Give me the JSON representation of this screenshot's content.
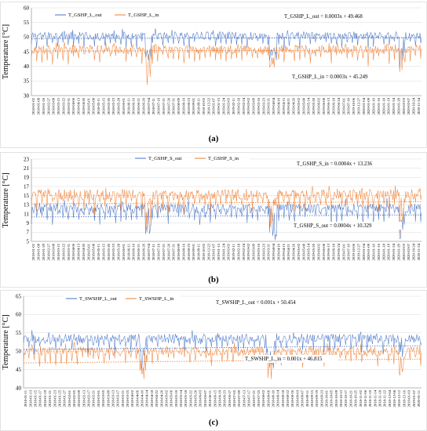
{
  "panels": [
    {
      "panel_label": "(a)",
      "colors": {
        "out": "#4472c4",
        "in": "#ed7d31"
      },
      "chart_data": {
        "type": "line",
        "title": "",
        "xlabel": "",
        "ylabel": "Temperature [°C]",
        "ylim": [
          30,
          60
        ],
        "yticks": [
          30,
          35,
          40,
          45,
          50,
          55,
          60
        ],
        "legend_position": "top-left",
        "series": [
          {
            "name": "T_GSHP_L_out",
            "baseline": 50.5,
            "noise": 2.2,
            "trend": {
              "slope": 0.0003,
              "intercept": 49.468
            }
          },
          {
            "name": "T_GSHP_L_in",
            "baseline": 45.8,
            "noise": 2.5,
            "trend": {
              "slope": 0.0003,
              "intercept": 45.249
            }
          }
        ],
        "annotations": [
          "T_GSHP_L_out = 0.0003x + 49.468",
          "T_GSHP_L_in = 0.0003x + 45.249"
        ],
        "x_labels": [
          "2018-01-02",
          "2018-01-08",
          "2018-01-26",
          "2018-02-27",
          "2018-03-08",
          "2018-03-15",
          "2018-03-22",
          "2018-03-31",
          "2018-04-06",
          "2018-04-13",
          "2018-04-20",
          "2018-05-01",
          "2018-05-08",
          "2018-05-11",
          "2018-05-15",
          "2018-05-20",
          "2018-05-23",
          "2018-05-28",
          "2018-06-01",
          "2018-06-11",
          "2018-06-16",
          "2018-06-21",
          "2018-06-26",
          "2018-07-04",
          "2018-07-11",
          "2018-07-16",
          "2018-07-21",
          "2018-07-26",
          "2018-07-31",
          "2018-08-09",
          "2018-08-16",
          "2018-08-23",
          "2018-09-01",
          "2018-09-11",
          "2018-10-03",
          "2018-12-22",
          "2019-01-07",
          "2019-01-15",
          "2019-01-24",
          "2019-02-03",
          "2019-02-11",
          "2019-02-18",
          "2019-02-24",
          "2019-03-02",
          "2019-03-09",
          "2019-03-16",
          "2019-03-23",
          "2019-03-31",
          "2019-04-04",
          "2019-04-10",
          "2019-04-15",
          "2019-04-21",
          "2019-04-26",
          "2019-05-02",
          "2019-05-08",
          "2019-05-14",
          "2019-05-20",
          "2019-06-02",
          "2019-06-08",
          "2019-06-13",
          "2019-06-18",
          "2019-06-24",
          "2019-07-01",
          "2019-07-10",
          "2019-10-06",
          "2019-12-27",
          "2020-01-04",
          "2020-01-09",
          "2020-01-10",
          "2020-01-16",
          "2020-01-18",
          "2020-01-19",
          "2020-01-24",
          "2020-01-29",
          "2020-02-03",
          "2020-02-07",
          "2020-10-24",
          "2020-11-24"
        ]
      }
    },
    {
      "panel_label": "(b)",
      "colors": {
        "out": "#4472c4",
        "in": "#ed7d31"
      },
      "chart_data": {
        "type": "line",
        "title": "",
        "xlabel": "",
        "ylabel": "Temperature [°C]",
        "ylim": [
          5,
          23
        ],
        "yticks": [
          5,
          7,
          9,
          11,
          13,
          15,
          17,
          19,
          21,
          23
        ],
        "legend_position": "top-center",
        "series": [
          {
            "name": "T_GSHP_S_out",
            "baseline": 12.2,
            "noise": 1.8,
            "trend": {
              "slope": 0.0004,
              "intercept": 10.329
            }
          },
          {
            "name": "T_GSHP_S_in",
            "baseline": 15.2,
            "noise": 2.0,
            "trend": {
              "slope": 0.0004,
              "intercept": 13.236
            }
          }
        ],
        "annotations": [
          "T_GSHP_S_in = 0.0004x + 13.236",
          "T_GSHP_S_out = 0.0004x + 10.329"
        ],
        "x_labels": [
          "2018-01-02",
          "2018-01-08",
          "2018-01-29",
          "2018-02-27",
          "2018-03-08",
          "2018-03-15",
          "2018-03-22",
          "2018-03-31",
          "2018-04-06",
          "2018-04-13",
          "2018-04-20",
          "2018-05-01",
          "2018-05-08",
          "2018-05-11",
          "2018-05-15",
          "2018-05-20",
          "2018-05-23",
          "2018-05-28",
          "2018-06-01",
          "2018-06-11",
          "2018-06-16",
          "2018-06-21",
          "2018-06-26",
          "2018-07-04",
          "2018-07-11",
          "2018-07-16",
          "2018-07-21",
          "2018-07-26",
          "2018-07-31",
          "2018-08-09",
          "2018-08-16",
          "2018-08-23",
          "2018-09-01",
          "2018-09-11",
          "2018-10-03",
          "2018-12-22",
          "2019-01-07",
          "2019-01-15",
          "2019-01-24",
          "2019-02-03",
          "2019-02-11",
          "2019-02-18",
          "2019-02-24",
          "2019-03-02",
          "2019-03-09",
          "2019-03-16",
          "2019-03-23",
          "2019-03-31",
          "2019-04-04",
          "2019-04-10",
          "2019-04-15",
          "2019-04-21",
          "2019-04-26",
          "2019-05-02",
          "2019-05-08",
          "2019-05-14",
          "2019-05-20",
          "2019-06-02",
          "2019-06-08",
          "2019-06-13",
          "2019-06-18",
          "2019-06-24",
          "2019-07-01",
          "2019-07-10",
          "2019-10-06",
          "2019-12-27",
          "2020-01-04",
          "2020-01-09",
          "2020-01-10",
          "2020-01-16",
          "2020-01-18",
          "2020-01-19",
          "2020-01-24",
          "2020-01-29",
          "2020-02-03",
          "2020-02-07",
          "2020-10-24",
          "2020-11-24"
        ]
      }
    },
    {
      "panel_label": "(c)",
      "colors": {
        "out": "#4472c4",
        "in": "#ed7d31"
      },
      "chart_data": {
        "type": "line",
        "title": "",
        "xlabel": "",
        "ylabel": "Temperature [°C]",
        "ylim": [
          40,
          65
        ],
        "yticks": [
          40,
          45,
          50,
          55,
          60,
          65
        ],
        "legend_position": "top-left",
        "series": [
          {
            "name": "T_SWSHP_L_out",
            "baseline": 53.5,
            "noise": 2.0,
            "trend": {
              "slope": 0.001,
              "intercept": 50.454
            }
          },
          {
            "name": "T_SWSHP_L_in",
            "baseline": 50.0,
            "noise": 2.0,
            "trend": {
              "slope": 0.001,
              "intercept": 46.815
            }
          }
        ],
        "annotations": [
          "T_SWSHP_L_out = 0.001x + 50.454",
          "T_SWSHP_L_in = 0.001x + 46.815"
        ],
        "x_labels": [
          "2018-01-11",
          "2018-01-13",
          "2018-01-15",
          "2018-01-17",
          "2018-01-19",
          "2018-01-21",
          "2018-01-23",
          "2018-01-25",
          "2018-01-27",
          "2018-02-01",
          "2018-02-05",
          "2018-02-09",
          "2018-02-13",
          "2018-02-17",
          "2018-02-21",
          "2018-03-01",
          "2018-03-05",
          "2018-03-09",
          "2018-03-13",
          "2018-03-17",
          "2018-03-21",
          "2018-03-25",
          "2018-04-02",
          "2018-04-06",
          "2018-04-10",
          "2018-04-14",
          "2018-04-18",
          "2018-04-22",
          "2018-04-26",
          "2018-05-02",
          "2018-05-06",
          "2018-05-10",
          "2018-05-14",
          "2018-05-18",
          "2018-05-22",
          "2018-05-26",
          "2018-06-03",
          "2018-06-07",
          "2018-06-11",
          "2018-06-15",
          "2018-06-19",
          "2018-06-23",
          "2018-06-27",
          "2018-07-05",
          "2018-07-09",
          "2018-07-13",
          "2018-07-17",
          "2018-07-21",
          "2018-07-25",
          "2018-08-02",
          "2018-08-06",
          "2018-08-10",
          "2018-08-14",
          "2018-08-18",
          "2018-08-22",
          "2018-08-26",
          "2018-09-03",
          "2018-09-07",
          "2018-09-11",
          "2018-09-15",
          "2018-09-19",
          "2018-09-23",
          "2018-10-01",
          "2018-10-05",
          "2018-10-09",
          "2018-10-13",
          "2018-10-17",
          "2018-10-21",
          "2018-10-25",
          "2018-11-02",
          "2018-11-06",
          "2018-11-10",
          "2018-11-14",
          "2018-11-18",
          "2018-11-22",
          "2018-12-04",
          "2018-12-08",
          "2018-12-12",
          "2018-12-16",
          "2019-01-03",
          "2019-01-07",
          "2020-01-11"
        ]
      }
    }
  ]
}
